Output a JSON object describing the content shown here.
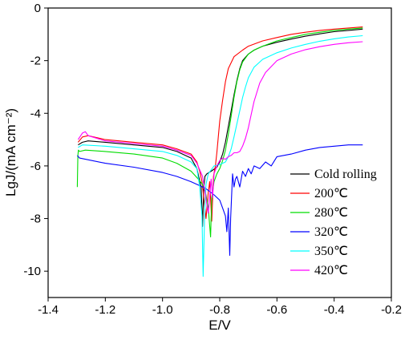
{
  "chart_data": {
    "type": "line",
    "title": "",
    "xlabel": "E/V",
    "ylabel": "LgJ/(mA cm⁻²)",
    "xlim": [
      -1.4,
      -0.2
    ],
    "ylim": [
      -11,
      0
    ],
    "xticks": [
      -1.4,
      -1.2,
      -1.0,
      -0.8,
      -0.6,
      -0.4,
      -0.2
    ],
    "yticks": [
      0,
      -2,
      -4,
      -6,
      -8,
      -10
    ],
    "xtick_labels": [
      "-1.4",
      "-1.2",
      "-1.0",
      "-0.8",
      "-0.6",
      "-0.4",
      "-0.2"
    ],
    "ytick_labels": [
      "0",
      "-2",
      "-4",
      "-6",
      "-8",
      "-10"
    ],
    "grid": false,
    "legend_position": "bottom-right",
    "series": [
      {
        "name": "Cold rolling",
        "color": "#000000",
        "x": [
          -1.295,
          -1.28,
          -1.26,
          -1.2,
          -1.1,
          -1.0,
          -0.95,
          -0.9,
          -0.88,
          -0.865,
          -0.86,
          -0.856,
          -0.852,
          -0.845,
          -0.83,
          -0.81,
          -0.8,
          -0.79,
          -0.78,
          -0.77,
          -0.76,
          -0.75,
          -0.74,
          -0.73,
          -0.72,
          -0.7,
          -0.68,
          -0.65,
          -0.6,
          -0.55,
          -0.5,
          -0.45,
          -0.4,
          -0.35,
          -0.3
        ],
        "y": [
          -5.2,
          -5.1,
          -5.05,
          -5.1,
          -5.2,
          -5.3,
          -5.45,
          -5.7,
          -6.1,
          -6.8,
          -8.3,
          -6.9,
          -6.4,
          -6.3,
          -6.2,
          -6.05,
          -5.85,
          -5.55,
          -5.1,
          -4.5,
          -3.9,
          -3.3,
          -2.75,
          -2.3,
          -2.0,
          -1.75,
          -1.6,
          -1.45,
          -1.3,
          -1.18,
          -1.07,
          -0.98,
          -0.9,
          -0.85,
          -0.8
        ]
      },
      {
        "name": "200℃",
        "color": "#ff0000",
        "x": [
          -1.295,
          -1.28,
          -1.26,
          -1.2,
          -1.1,
          -1.0,
          -0.95,
          -0.9,
          -0.88,
          -0.87,
          -0.862,
          -0.855,
          -0.848,
          -0.84,
          -0.835,
          -0.828,
          -0.822,
          -0.815,
          -0.81,
          -0.805,
          -0.8,
          -0.79,
          -0.78,
          -0.77,
          -0.75,
          -0.72,
          -0.7,
          -0.65,
          -0.6,
          -0.55,
          -0.5,
          -0.45,
          -0.4,
          -0.35,
          -0.3
        ],
        "y": [
          -5.1,
          -4.9,
          -4.85,
          -5.0,
          -5.1,
          -5.2,
          -5.35,
          -5.55,
          -5.85,
          -6.2,
          -6.6,
          -7.3,
          -8.0,
          -7.0,
          -6.6,
          -8.1,
          -6.4,
          -6.0,
          -5.5,
          -4.9,
          -4.3,
          -3.5,
          -2.8,
          -2.3,
          -1.85,
          -1.6,
          -1.45,
          -1.25,
          -1.12,
          -1.0,
          -0.92,
          -0.85,
          -0.8,
          -0.76,
          -0.72
        ]
      },
      {
        "name": "280℃",
        "color": "#00dd00",
        "x": [
          -1.298,
          -1.296,
          -1.294,
          -1.29,
          -1.27,
          -1.2,
          -1.1,
          -1.0,
          -0.95,
          -0.9,
          -0.875,
          -0.86,
          -0.85,
          -0.84,
          -0.832,
          -0.828,
          -0.82,
          -0.81,
          -0.8,
          -0.79,
          -0.78,
          -0.77,
          -0.76,
          -0.75,
          -0.74,
          -0.73,
          -0.72,
          -0.7,
          -0.68,
          -0.65,
          -0.6,
          -0.55,
          -0.5,
          -0.45,
          -0.4,
          -0.35,
          -0.3
        ],
        "y": [
          -6.8,
          -5.6,
          -5.4,
          -5.45,
          -5.4,
          -5.45,
          -5.55,
          -5.7,
          -5.9,
          -6.2,
          -6.5,
          -6.7,
          -7.0,
          -7.6,
          -8.7,
          -7.2,
          -6.6,
          -6.3,
          -6.1,
          -5.8,
          -5.4,
          -4.8,
          -4.1,
          -3.4,
          -2.8,
          -2.35,
          -2.05,
          -1.75,
          -1.6,
          -1.45,
          -1.25,
          -1.12,
          -1.0,
          -0.92,
          -0.85,
          -0.8,
          -0.76
        ]
      },
      {
        "name": "320℃",
        "color": "#0000ff",
        "x": [
          -1.298,
          -1.29,
          -1.2,
          -1.1,
          -1.0,
          -0.95,
          -0.9,
          -0.85,
          -0.82,
          -0.8,
          -0.79,
          -0.78,
          -0.775,
          -0.77,
          -0.765,
          -0.762,
          -0.758,
          -0.755,
          -0.75,
          -0.745,
          -0.74,
          -0.73,
          -0.72,
          -0.71,
          -0.7,
          -0.69,
          -0.68,
          -0.66,
          -0.64,
          -0.62,
          -0.6,
          -0.55,
          -0.5,
          -0.45,
          -0.4,
          -0.35,
          -0.3
        ],
        "y": [
          -5.6,
          -5.7,
          -5.9,
          -6.05,
          -6.25,
          -6.4,
          -6.6,
          -6.85,
          -7.1,
          -7.3,
          -7.6,
          -7.9,
          -8.5,
          -7.6,
          -9.4,
          -8.0,
          -7.0,
          -6.3,
          -6.8,
          -6.5,
          -6.4,
          -6.8,
          -6.2,
          -6.4,
          -6.1,
          -6.3,
          -6.0,
          -6.1,
          -5.85,
          -6.0,
          -5.65,
          -5.55,
          -5.4,
          -5.3,
          -5.25,
          -5.2,
          -5.2
        ]
      },
      {
        "name": "350℃",
        "color": "#00ffff",
        "x": [
          -1.295,
          -1.28,
          -1.2,
          -1.1,
          -1.0,
          -0.95,
          -0.9,
          -0.88,
          -0.87,
          -0.862,
          -0.858,
          -0.852,
          -0.848,
          -0.84,
          -0.83,
          -0.82,
          -0.8,
          -0.78,
          -0.77,
          -0.76,
          -0.75,
          -0.74,
          -0.73,
          -0.72,
          -0.71,
          -0.7,
          -0.68,
          -0.65,
          -0.6,
          -0.55,
          -0.5,
          -0.45,
          -0.4,
          -0.35,
          -0.3
        ],
        "y": [
          -5.3,
          -5.2,
          -5.25,
          -5.35,
          -5.45,
          -5.6,
          -5.85,
          -6.1,
          -6.8,
          -7.9,
          -10.2,
          -7.5,
          -6.7,
          -6.3,
          -6.15,
          -6.0,
          -5.95,
          -5.85,
          -5.65,
          -5.35,
          -4.9,
          -4.4,
          -3.9,
          -3.4,
          -3.0,
          -2.65,
          -2.25,
          -1.95,
          -1.7,
          -1.52,
          -1.38,
          -1.26,
          -1.17,
          -1.1,
          -1.05
        ]
      },
      {
        "name": "420℃",
        "color": "#ff00ff",
        "x": [
          -1.295,
          -1.28,
          -1.27,
          -1.26,
          -1.2,
          -1.1,
          -1.0,
          -0.95,
          -0.9,
          -0.88,
          -0.86,
          -0.85,
          -0.84,
          -0.83,
          -0.825,
          -0.82,
          -0.81,
          -0.8,
          -0.79,
          -0.78,
          -0.77,
          -0.76,
          -0.75,
          -0.74,
          -0.73,
          -0.72,
          -0.71,
          -0.7,
          -0.69,
          -0.68,
          -0.66,
          -0.64,
          -0.6,
          -0.55,
          -0.5,
          -0.45,
          -0.4,
          -0.35,
          -0.3
        ],
        "y": [
          -5.0,
          -4.75,
          -4.7,
          -4.85,
          -5.05,
          -5.15,
          -5.25,
          -5.4,
          -5.6,
          -5.9,
          -6.4,
          -7.1,
          -7.8,
          -6.5,
          -7.2,
          -6.3,
          -6.0,
          -5.8,
          -5.7,
          -5.75,
          -5.65,
          -5.6,
          -5.5,
          -5.5,
          -5.45,
          -5.25,
          -4.95,
          -4.55,
          -4.05,
          -3.55,
          -2.85,
          -2.45,
          -2.0,
          -1.75,
          -1.58,
          -1.47,
          -1.38,
          -1.32,
          -1.28
        ]
      }
    ]
  }
}
